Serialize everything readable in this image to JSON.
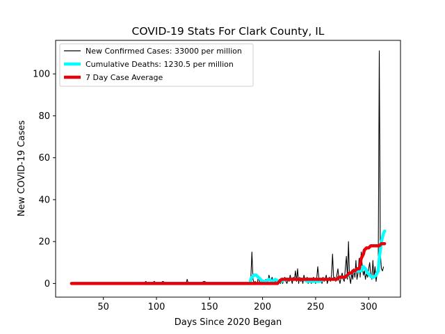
{
  "chart_data": {
    "type": "line",
    "title": "COVID-19 Stats For Clark County, IL",
    "xlabel": "Days Since 2020 Began",
    "ylabel": "New COVID-19 Cases",
    "xlim": [
      5,
      330
    ],
    "ylim": [
      -6.5,
      116
    ],
    "xticks": [
      50,
      100,
      150,
      200,
      250,
      300
    ],
    "yticks": [
      0,
      20,
      40,
      60,
      80,
      100
    ],
    "grid": false,
    "legend_position": "top-left",
    "series": [
      {
        "name": "New Confirmed Cases: 33000 per million",
        "color": "#000000",
        "style": "thin-line",
        "points": [
          [
            88,
            0
          ],
          [
            90,
            1
          ],
          [
            92,
            0
          ],
          [
            95,
            0
          ],
          [
            98,
            1
          ],
          [
            100,
            0
          ],
          [
            103,
            0
          ],
          [
            106,
            1
          ],
          [
            110,
            0
          ],
          [
            115,
            0
          ],
          [
            120,
            0
          ],
          [
            125,
            0
          ],
          [
            128,
            0
          ],
          [
            129,
            2
          ],
          [
            130,
            0
          ],
          [
            135,
            0
          ],
          [
            140,
            0
          ],
          [
            145,
            1
          ],
          [
            150,
            0
          ],
          [
            155,
            0
          ],
          [
            160,
            0
          ],
          [
            165,
            0
          ],
          [
            170,
            0
          ],
          [
            175,
            0
          ],
          [
            180,
            0
          ],
          [
            185,
            0
          ],
          [
            188,
            0
          ],
          [
            189,
            3
          ],
          [
            190,
            15
          ],
          [
            191,
            2
          ],
          [
            192,
            0
          ],
          [
            193,
            1
          ],
          [
            194,
            0
          ],
          [
            195,
            0
          ],
          [
            196,
            3
          ],
          [
            197,
            1
          ],
          [
            198,
            0
          ],
          [
            199,
            2
          ],
          [
            200,
            0
          ],
          [
            201,
            1
          ],
          [
            202,
            0
          ],
          [
            203,
            2
          ],
          [
            204,
            1
          ],
          [
            205,
            0
          ],
          [
            206,
            4
          ],
          [
            207,
            2
          ],
          [
            208,
            1
          ],
          [
            209,
            3
          ],
          [
            210,
            0
          ],
          [
            211,
            2
          ],
          [
            212,
            1
          ],
          [
            213,
            0
          ],
          [
            214,
            0
          ],
          [
            215,
            1
          ],
          [
            216,
            2
          ],
          [
            217,
            0
          ],
          [
            218,
            1
          ],
          [
            219,
            0
          ],
          [
            220,
            2
          ],
          [
            221,
            3
          ],
          [
            222,
            1
          ],
          [
            223,
            0
          ],
          [
            224,
            2
          ],
          [
            225,
            1
          ],
          [
            226,
            4
          ],
          [
            227,
            2
          ],
          [
            228,
            0
          ],
          [
            229,
            3
          ],
          [
            230,
            2
          ],
          [
            231,
            6
          ],
          [
            232,
            1
          ],
          [
            233,
            7
          ],
          [
            234,
            0
          ],
          [
            235,
            3
          ],
          [
            236,
            1
          ],
          [
            237,
            2
          ],
          [
            238,
            0
          ],
          [
            239,
            4
          ],
          [
            240,
            2
          ],
          [
            241,
            1
          ],
          [
            242,
            3
          ],
          [
            243,
            0
          ],
          [
            244,
            2
          ],
          [
            245,
            1
          ],
          [
            246,
            0
          ],
          [
            247,
            2
          ],
          [
            248,
            3
          ],
          [
            249,
            1
          ],
          [
            250,
            0
          ],
          [
            251,
            2
          ],
          [
            252,
            8
          ],
          [
            253,
            3
          ],
          [
            254,
            1
          ],
          [
            255,
            2
          ],
          [
            256,
            0
          ],
          [
            257,
            3
          ],
          [
            258,
            1
          ],
          [
            259,
            2
          ],
          [
            260,
            4
          ],
          [
            261,
            0
          ],
          [
            262,
            2
          ],
          [
            263,
            3
          ],
          [
            264,
            1
          ],
          [
            265,
            4
          ],
          [
            266,
            14
          ],
          [
            267,
            2
          ],
          [
            268,
            3
          ],
          [
            269,
            1
          ],
          [
            270,
            4
          ],
          [
            271,
            7
          ],
          [
            272,
            2
          ],
          [
            273,
            0
          ],
          [
            274,
            3
          ],
          [
            275,
            5
          ],
          [
            276,
            2
          ],
          [
            277,
            1
          ],
          [
            278,
            7
          ],
          [
            279,
            13
          ],
          [
            280,
            2
          ],
          [
            281,
            20
          ],
          [
            282,
            3
          ],
          [
            283,
            0
          ],
          [
            284,
            5
          ],
          [
            285,
            2
          ],
          [
            286,
            7
          ],
          [
            287,
            3
          ],
          [
            288,
            11
          ],
          [
            289,
            2
          ],
          [
            290,
            5
          ],
          [
            291,
            12
          ],
          [
            292,
            3
          ],
          [
            293,
            15
          ],
          [
            294,
            8
          ],
          [
            295,
            4
          ],
          [
            296,
            6
          ],
          [
            297,
            2
          ],
          [
            298,
            5
          ],
          [
            299,
            3
          ],
          [
            300,
            7
          ],
          [
            301,
            10
          ],
          [
            302,
            4
          ],
          [
            303,
            2
          ],
          [
            304,
            11
          ],
          [
            305,
            3
          ],
          [
            306,
            8
          ],
          [
            307,
            1
          ],
          [
            308,
            5
          ],
          [
            309,
            9
          ],
          [
            310,
            111
          ],
          [
            311,
            15
          ],
          [
            312,
            7
          ],
          [
            313,
            6
          ],
          [
            314,
            8
          ]
        ]
      },
      {
        "name": "Cumulative Deaths: 1230.5 per million",
        "color": "#00ffff",
        "style": "thick-line",
        "points": [
          [
            88,
            0
          ],
          [
            100,
            0
          ],
          [
            120,
            0
          ],
          [
            140,
            0
          ],
          [
            160,
            0
          ],
          [
            180,
            0
          ],
          [
            188,
            0
          ],
          [
            189,
            2
          ],
          [
            190,
            3
          ],
          [
            192,
            4
          ],
          [
            194,
            4
          ],
          [
            196,
            3
          ],
          [
            198,
            2
          ],
          [
            200,
            1
          ],
          [
            203,
            1
          ],
          [
            206,
            2
          ],
          [
            209,
            1
          ],
          [
            212,
            2
          ],
          [
            215,
            1
          ],
          [
            218,
            1
          ],
          [
            221,
            2
          ],
          [
            224,
            2
          ],
          [
            227,
            2
          ],
          [
            230,
            2
          ],
          [
            233,
            2
          ],
          [
            236,
            2
          ],
          [
            239,
            2
          ],
          [
            242,
            1
          ],
          [
            245,
            1
          ],
          [
            248,
            1
          ],
          [
            251,
            1
          ],
          [
            254,
            1
          ],
          [
            257,
            2
          ],
          [
            260,
            2
          ],
          [
            263,
            2
          ],
          [
            266,
            2
          ],
          [
            269,
            2
          ],
          [
            272,
            3
          ],
          [
            275,
            3
          ],
          [
            278,
            3
          ],
          [
            281,
            4
          ],
          [
            284,
            5
          ],
          [
            287,
            6
          ],
          [
            290,
            6
          ],
          [
            293,
            6
          ],
          [
            295,
            8
          ],
          [
            297,
            7
          ],
          [
            299,
            5
          ],
          [
            301,
            4
          ],
          [
            303,
            3
          ],
          [
            305,
            3
          ],
          [
            307,
            4
          ],
          [
            308,
            5
          ],
          [
            309,
            6
          ],
          [
            310,
            12
          ],
          [
            311,
            16
          ],
          [
            312,
            20
          ],
          [
            313,
            22
          ],
          [
            314,
            24
          ],
          [
            315,
            25
          ]
        ]
      },
      {
        "name": "7 Day Case Average",
        "color": "#e8000b",
        "style": "thick-line",
        "points": [
          [
            20,
            0
          ],
          [
            60,
            0
          ],
          [
            100,
            0
          ],
          [
            140,
            0
          ],
          [
            180,
            0
          ],
          [
            200,
            0
          ],
          [
            214,
            0
          ],
          [
            216,
            1
          ],
          [
            218,
            2
          ],
          [
            230,
            2
          ],
          [
            245,
            2
          ],
          [
            260,
            2
          ],
          [
            270,
            2
          ],
          [
            272,
            3
          ],
          [
            278,
            3
          ],
          [
            280,
            4
          ],
          [
            282,
            5
          ],
          [
            284,
            5
          ],
          [
            285,
            6
          ],
          [
            287,
            6
          ],
          [
            289,
            7
          ],
          [
            291,
            7
          ],
          [
            292,
            9
          ],
          [
            293,
            12
          ],
          [
            295,
            14
          ],
          [
            296,
            16
          ],
          [
            298,
            17
          ],
          [
            300,
            17
          ],
          [
            302,
            18
          ],
          [
            306,
            18
          ],
          [
            310,
            18
          ],
          [
            312,
            19
          ],
          [
            315,
            19
          ]
        ]
      }
    ]
  }
}
